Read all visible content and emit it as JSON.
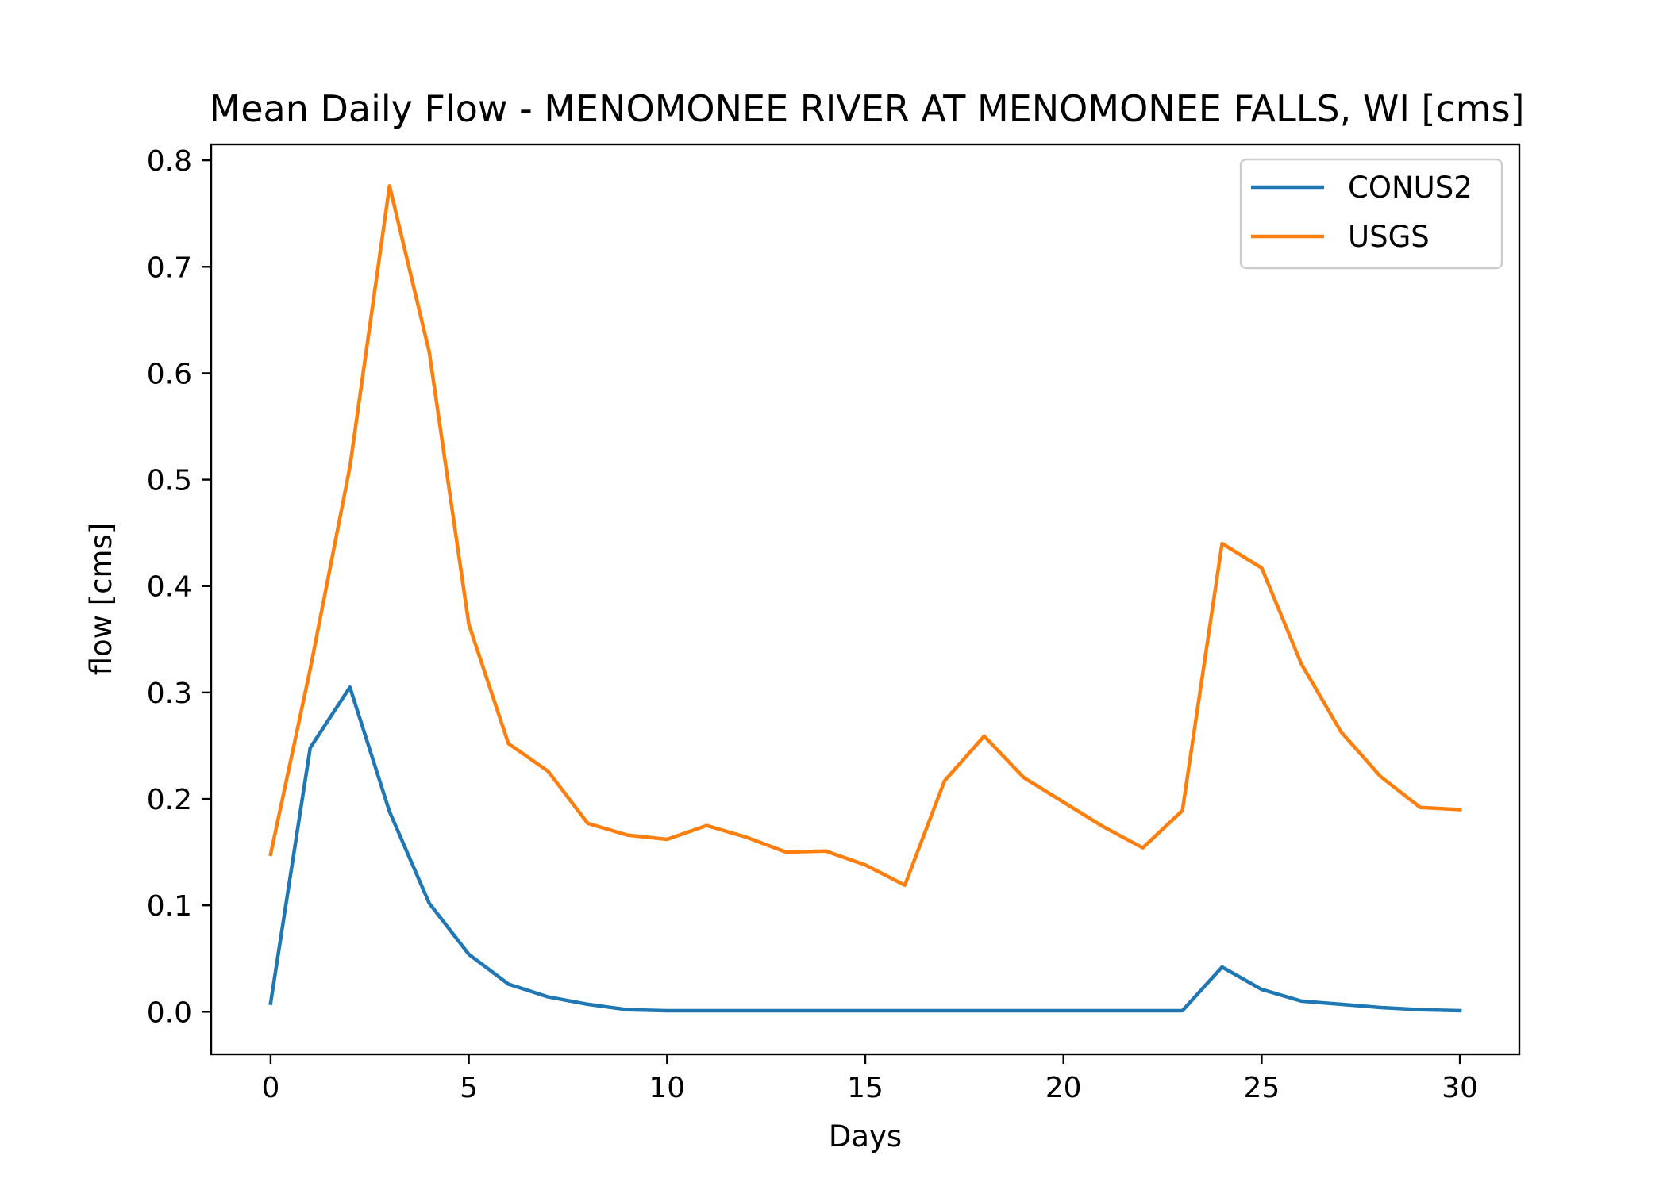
{
  "chart_data": {
    "type": "line",
    "title": "Mean Daily Flow - MENOMONEE RIVER AT MENOMONEE FALLS, WI [cms]",
    "xlabel": "Days",
    "ylabel": "flow [cms]",
    "xlim": [
      -1.5,
      31.5
    ],
    "ylim": [
      -0.04,
      0.815
    ],
    "xticks": [
      0,
      5,
      10,
      15,
      20,
      25,
      30
    ],
    "yticks": [
      0.0,
      0.1,
      0.2,
      0.3,
      0.4,
      0.5,
      0.6,
      0.7,
      0.8
    ],
    "xtick_labels": [
      "0",
      "5",
      "10",
      "15",
      "20",
      "25",
      "30"
    ],
    "ytick_labels": [
      "0.0",
      "0.1",
      "0.2",
      "0.3",
      "0.4",
      "0.5",
      "0.6",
      "0.7",
      "0.8"
    ],
    "grid": false,
    "legend_position": "top-right",
    "x": [
      0,
      1,
      2,
      3,
      4,
      5,
      6,
      7,
      8,
      9,
      10,
      11,
      12,
      13,
      14,
      15,
      16,
      17,
      18,
      19,
      20,
      21,
      22,
      23,
      24,
      25,
      26,
      27,
      28,
      29,
      30
    ],
    "series": [
      {
        "name": "CONUS2",
        "color": "#1f77b4",
        "values": [
          0.008,
          0.248,
          0.305,
          0.188,
          0.102,
          0.054,
          0.026,
          0.014,
          0.007,
          0.002,
          0.001,
          0.001,
          0.001,
          0.001,
          0.001,
          0.001,
          0.001,
          0.001,
          0.001,
          0.001,
          0.001,
          0.001,
          0.001,
          0.001,
          0.042,
          0.021,
          0.01,
          0.007,
          0.004,
          0.002,
          0.001
        ]
      },
      {
        "name": "USGS",
        "color": "#ff7f0e",
        "values": [
          0.148,
          0.322,
          0.512,
          0.776,
          0.62,
          0.364,
          0.252,
          0.226,
          0.177,
          0.166,
          0.162,
          0.175,
          0.164,
          0.15,
          0.151,
          0.138,
          0.119,
          0.217,
          0.259,
          0.22,
          0.197,
          0.174,
          0.154,
          0.189,
          0.44,
          0.417,
          0.327,
          0.263,
          0.221,
          0.192,
          0.19
        ]
      }
    ]
  }
}
